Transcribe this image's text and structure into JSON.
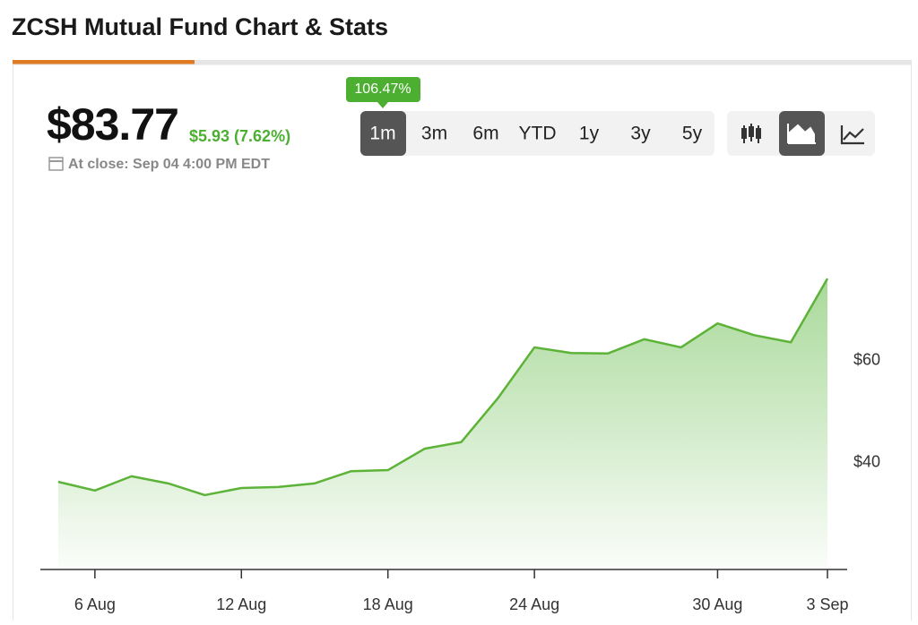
{
  "header": {
    "title": "ZCSH Mutual Fund Chart & Stats"
  },
  "quote": {
    "price": "$83.77",
    "change": "$5.93 (7.62%)",
    "close_note": "At close: Sep 04 4:00 PM EDT"
  },
  "tooltip": "106.47%",
  "ranges": [
    "1m",
    "3m",
    "6m",
    "YTD",
    "1y",
    "3y",
    "5y"
  ],
  "chart_data": {
    "type": "area",
    "color": "#5cb338",
    "categories": [
      null,
      "6 Aug",
      null,
      null,
      null,
      "12 Aug",
      null,
      null,
      null,
      "18 Aug",
      null,
      null,
      null,
      "24 Aug",
      null,
      null,
      null,
      null,
      "30 Aug",
      null,
      null,
      "3 Sep"
    ],
    "values": [
      36.2,
      34.5,
      37.3,
      35.9,
      33.6,
      35.0,
      35.2,
      35.9,
      38.3,
      38.5,
      42.7,
      44.0,
      52.6,
      62.6,
      61.5,
      61.4,
      64.2,
      62.6,
      67.3,
      65.0,
      63.6,
      76.1
    ],
    "ylim": [
      19,
      93
    ],
    "yticks": [
      {
        "value": 40,
        "label": "$40"
      },
      {
        "value": 60,
        "label": "$60"
      }
    ]
  }
}
